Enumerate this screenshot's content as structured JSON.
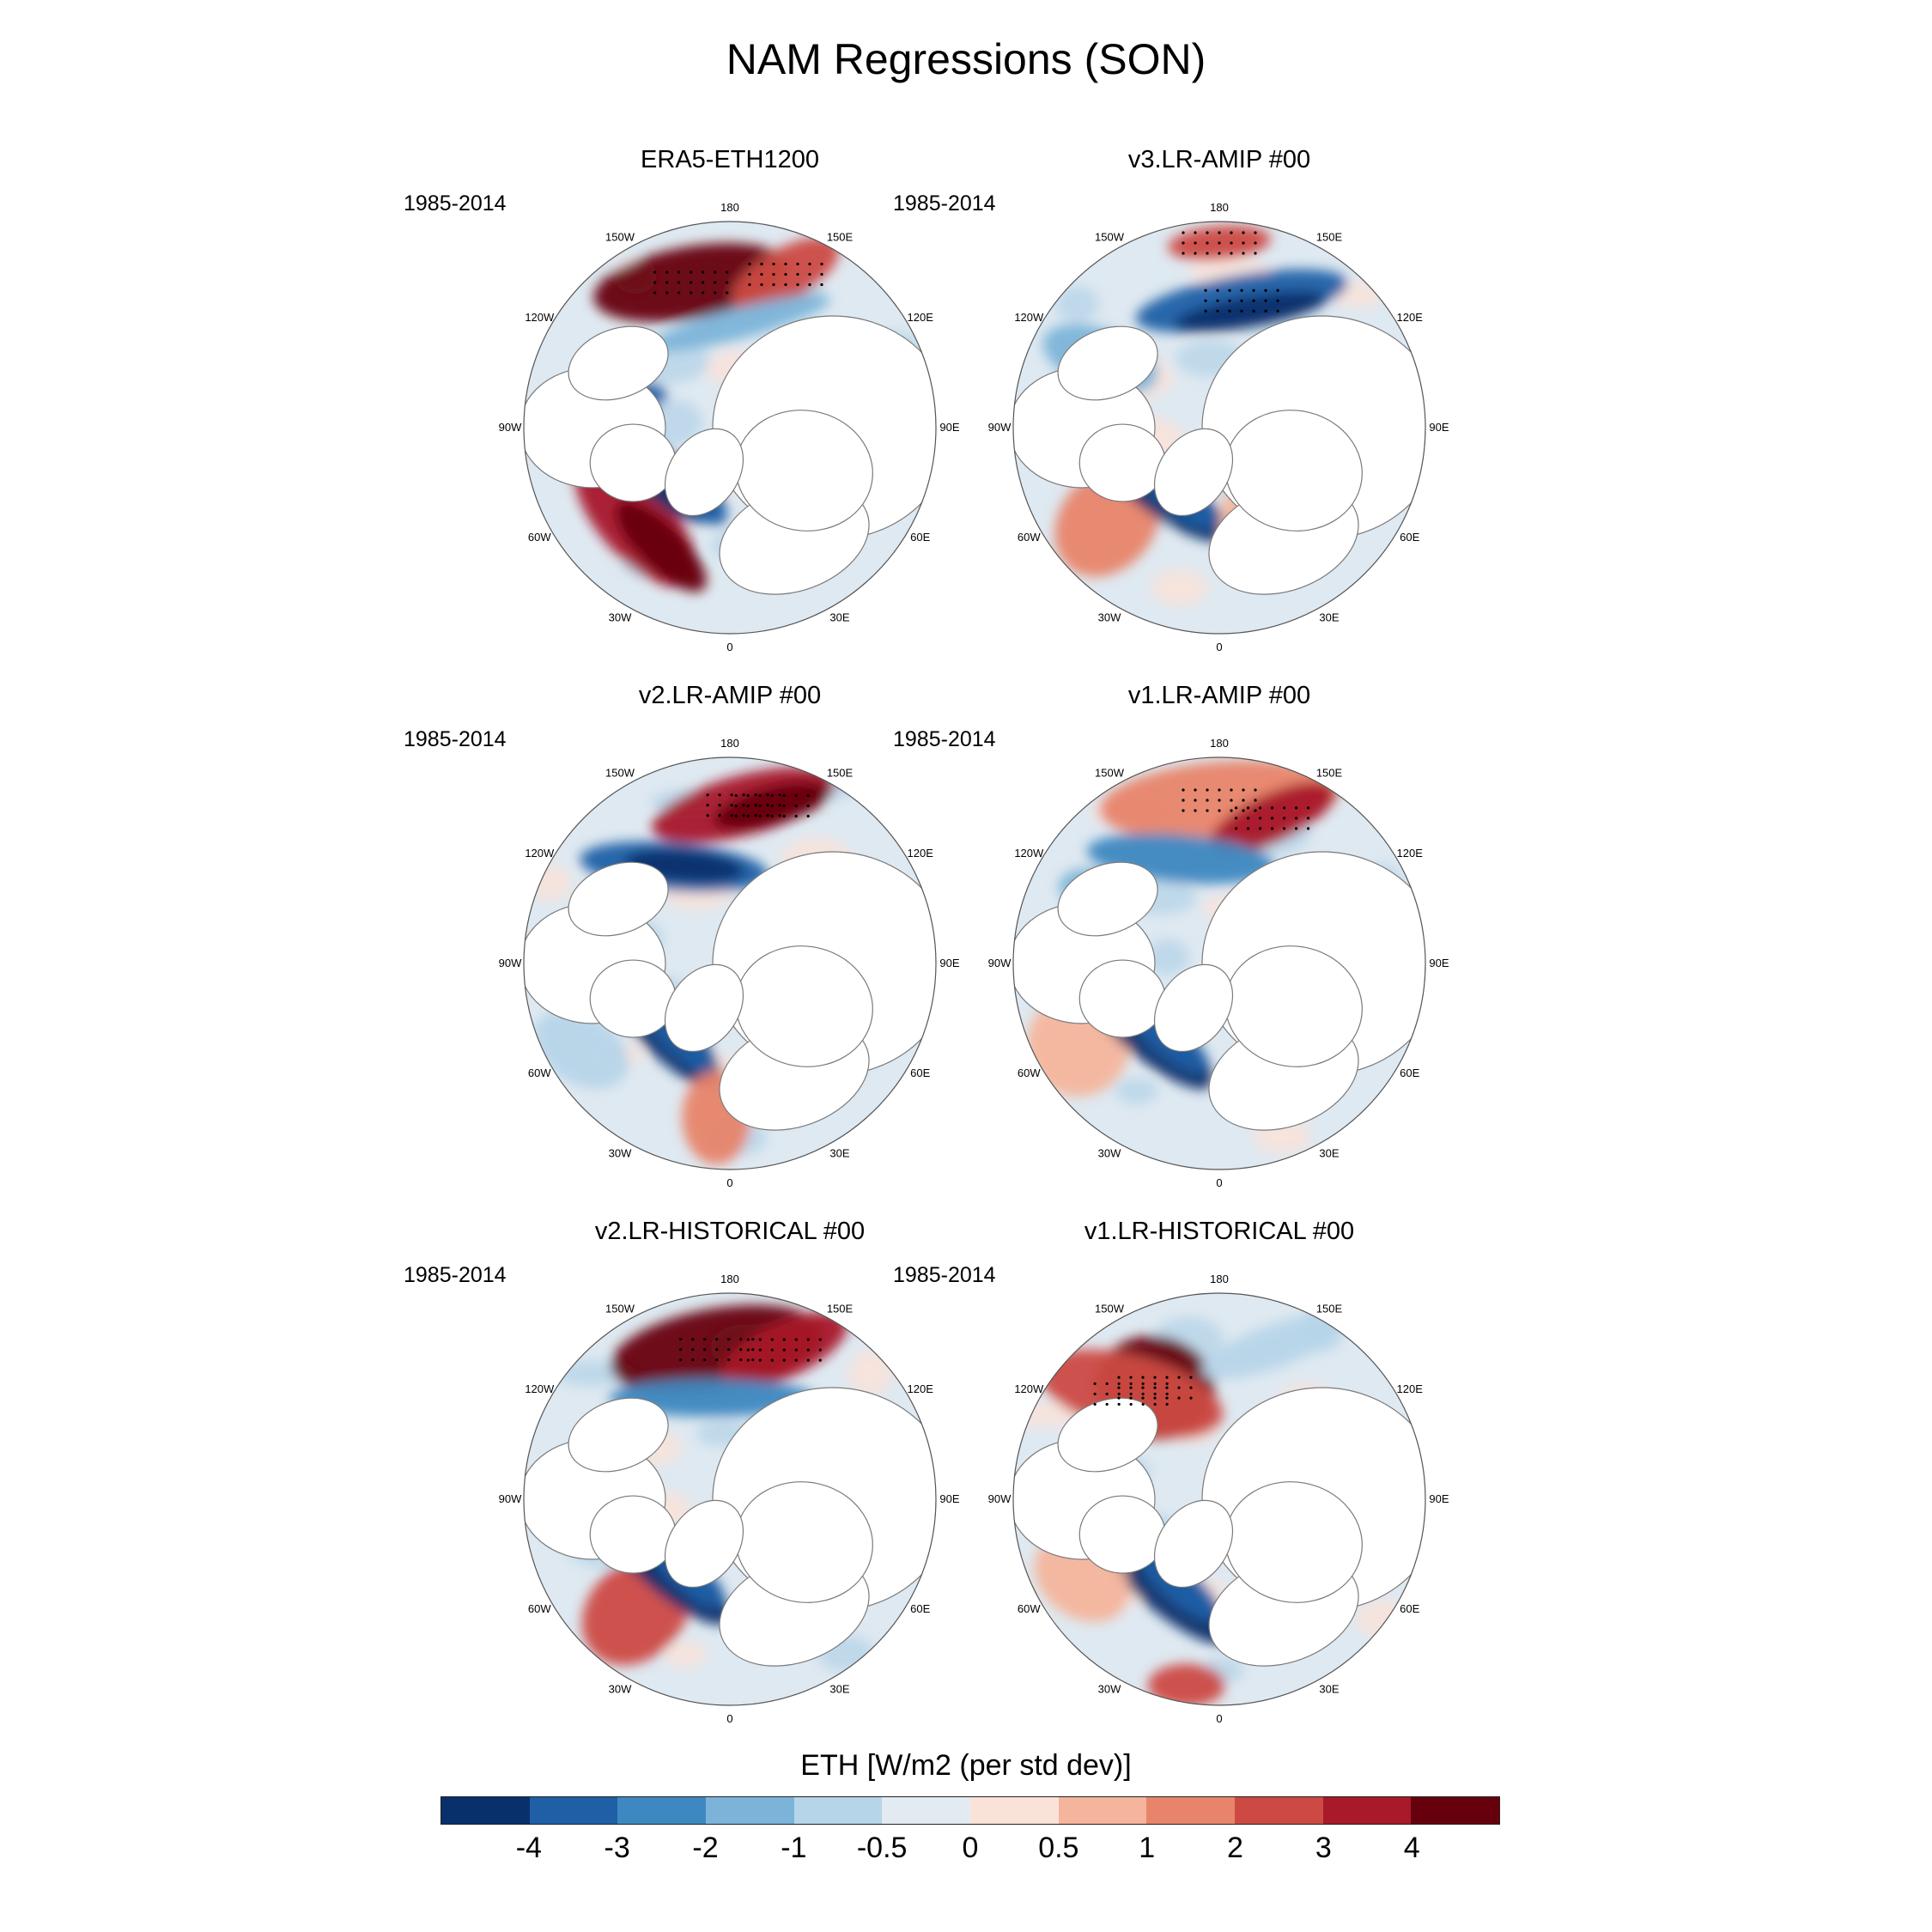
{
  "title": "NAM Regressions (SON)",
  "panels": [
    {
      "title": "ERA5-ETH1200",
      "years": "1985-2014"
    },
    {
      "title": "v3.LR-AMIP  #00",
      "years": "1985-2014"
    },
    {
      "title": "v2.LR-AMIP  #00",
      "years": "1985-2014"
    },
    {
      "title": "v1.LR-AMIP  #00",
      "years": "1985-2014"
    },
    {
      "title": "v2.LR-HISTORICAL  #00",
      "years": "1985-2014"
    },
    {
      "title": "v1.LR-HISTORICAL  #00",
      "years": "1985-2014"
    }
  ],
  "longitude_labels": [
    "180",
    "150E",
    "120E",
    "90E",
    "60E",
    "30E",
    "0",
    "30W",
    "60W",
    "90W",
    "120W",
    "150W"
  ],
  "colorbar": {
    "title": "ETH [W/m2 (per std dev)]",
    "ticks": [
      "-4",
      "-3",
      "-2",
      "-1",
      "-0.5",
      "0",
      "0.5",
      "1",
      "2",
      "3",
      "4"
    ],
    "colors": [
      "#08306b",
      "#1f5fa6",
      "#3d88c0",
      "#7cb4d9",
      "#b7d5e9",
      "#e3ebf2",
      "#fbe2d8",
      "#f4b59c",
      "#e8846a",
      "#cc4a43",
      "#a8192a",
      "#67000d"
    ]
  }
}
